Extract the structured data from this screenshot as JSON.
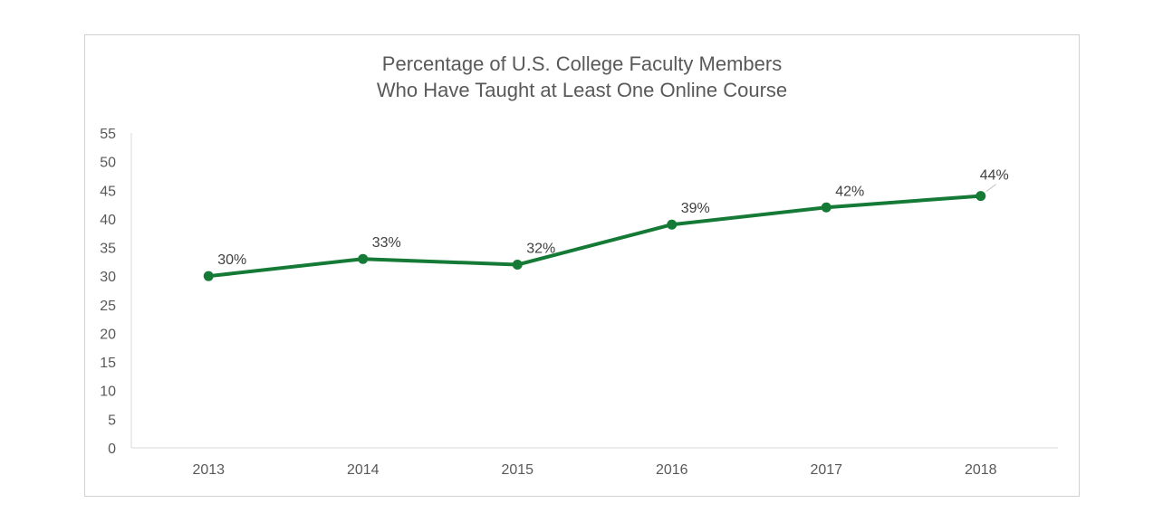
{
  "chart_data": {
    "type": "line",
    "title_lines": [
      "Percentage of U.S. College Faculty Members",
      "Who Have Taught at Least One Online Course"
    ],
    "categories": [
      "2013",
      "2014",
      "2015",
      "2016",
      "2017",
      "2018"
    ],
    "series": [
      {
        "values": [
          30,
          33,
          32,
          39,
          42,
          44
        ],
        "data_labels": [
          "30%",
          "33%",
          "32%",
          "39%",
          "42%",
          "44%"
        ]
      }
    ],
    "ylim": [
      0,
      55
    ],
    "yticks": [
      0,
      5,
      10,
      15,
      20,
      25,
      30,
      35,
      40,
      45,
      50,
      55
    ],
    "grid": false,
    "legend": "none",
    "line_color": "#147a35",
    "axis_color": "#d9d9d9"
  }
}
